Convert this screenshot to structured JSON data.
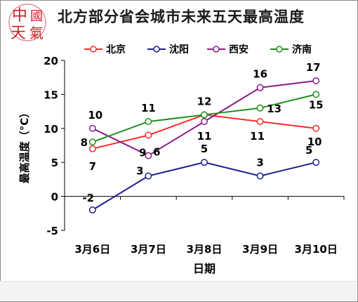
{
  "logo": {
    "chars": [
      "中",
      "國",
      "天",
      "氣"
    ],
    "color": "#c8202a"
  },
  "chart_data": {
    "type": "line",
    "title": "北方部分省会城市未来五天最高温度",
    "xlabel": "日期",
    "ylabel": "最高温度（°C）",
    "categories": [
      "3月6日",
      "3月7日",
      "3月8日",
      "3月9日",
      "3月10日"
    ],
    "ylim": [
      -5,
      20
    ],
    "yticks": [
      "20",
      "15",
      "10",
      "5",
      "0",
      "-5"
    ],
    "grid": false,
    "legend": "top",
    "series": [
      {
        "name": "北京",
        "color": "#ff2a2a",
        "values": [
          7,
          9,
          12,
          11,
          10
        ],
        "labels": [
          "7",
          "9",
          "12",
          "11",
          "10"
        ]
      },
      {
        "name": "沈阳",
        "color": "#1f1f8f",
        "values": [
          -2,
          3,
          5,
          3,
          5
        ],
        "labels": [
          "-2",
          "3",
          "5",
          "3",
          "5"
        ]
      },
      {
        "name": "西安",
        "color": "#8b1a8b",
        "values": [
          10,
          6,
          11,
          16,
          17
        ],
        "labels": [
          "10",
          "6",
          "11",
          "16",
          "17"
        ]
      },
      {
        "name": "济南",
        "color": "#1f8f1f",
        "values": [
          8,
          11,
          12,
          13,
          15
        ],
        "labels": [
          "8",
          "11",
          "",
          "13",
          "15"
        ]
      }
    ]
  }
}
